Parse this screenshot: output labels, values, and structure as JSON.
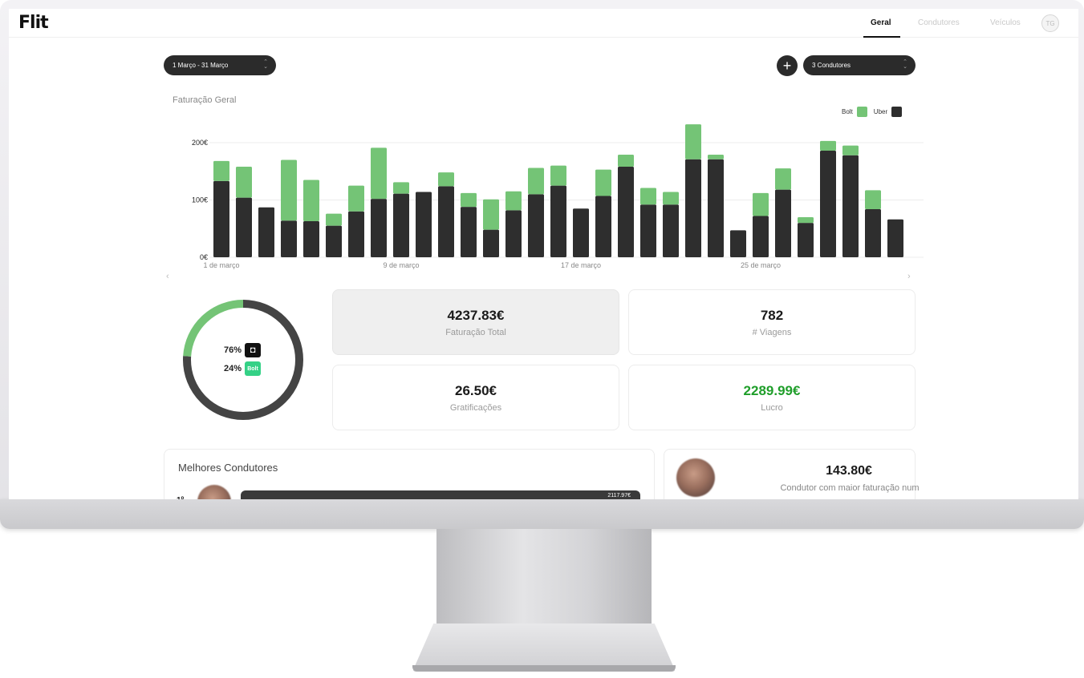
{
  "nav": {
    "logo": "Flit",
    "tabs": [
      {
        "label": "Geral",
        "active": true
      },
      {
        "label": "Condutores",
        "active": false
      },
      {
        "label": "Veículos",
        "active": false
      }
    ],
    "avatar_initials": "TG"
  },
  "filters": {
    "date_range": "1 Março - 31 Março",
    "drivers": "3 Condutores",
    "add_icon": "plus-icon"
  },
  "chart_data": {
    "type": "bar",
    "stacked": true,
    "title": "Faturação Geral",
    "categories": [
      "1",
      "2",
      "3",
      "4",
      "5",
      "6",
      "7",
      "8",
      "9",
      "10",
      "11",
      "12",
      "13",
      "14",
      "15",
      "16",
      "17",
      "18",
      "19",
      "20",
      "21",
      "22",
      "23",
      "24",
      "25",
      "26",
      "27",
      "28",
      "29",
      "30",
      "31"
    ],
    "x_tick_labels": [
      {
        "index": 0,
        "label": "1 de março"
      },
      {
        "index": 8,
        "label": "9 de março"
      },
      {
        "index": 16,
        "label": "17 de março"
      },
      {
        "index": 24,
        "label": "25 de março"
      }
    ],
    "y_tick_labels": [
      "0€",
      "100€",
      "200€"
    ],
    "ylim": [
      0,
      200
    ],
    "grid": true,
    "legend_position": "top-right",
    "series": [
      {
        "name": "Uber",
        "color": "#2e2e2e",
        "values": [
          133,
          104,
          87,
          64,
          63,
          55,
          80,
          102,
          111,
          114,
          124,
          88,
          48,
          82,
          110,
          125,
          85,
          107,
          158,
          92,
          92,
          171,
          171,
          47,
          72,
          118,
          60,
          186,
          178,
          84,
          66
        ]
      },
      {
        "name": "Bolt",
        "color": "#74c476",
        "values": [
          35,
          54,
          0,
          106,
          72,
          21,
          45,
          89,
          20,
          0,
          24,
          24,
          53,
          33,
          46,
          35,
          0,
          46,
          21,
          29,
          22,
          61,
          8,
          0,
          40,
          37,
          10,
          17,
          17,
          33,
          0
        ]
      }
    ]
  },
  "donut": {
    "uber_percent": 76,
    "bolt_percent": 24,
    "uber_label": "76%",
    "bolt_label": "24%",
    "uber_icon": "uber-icon",
    "bolt_badge": "Bolt",
    "uber_color": "#444444",
    "bolt_color": "#74c476"
  },
  "stats": {
    "revenue_value": "4237.83€",
    "revenue_label": "Faturação Total",
    "trips_value": "782",
    "trips_label": "# Viagens",
    "tips_value": "26.50€",
    "tips_label": "Gratificações",
    "profit_value": "2289.99€",
    "profit_label": "Lucro",
    "profit_color": "#1f9e2a"
  },
  "best_drivers": {
    "title": "Melhores Condutores",
    "first": {
      "rank": "1º",
      "value": "2117.97€"
    }
  },
  "top_driver": {
    "value": "143.80€",
    "label": "Condutor com maior faturação num"
  }
}
